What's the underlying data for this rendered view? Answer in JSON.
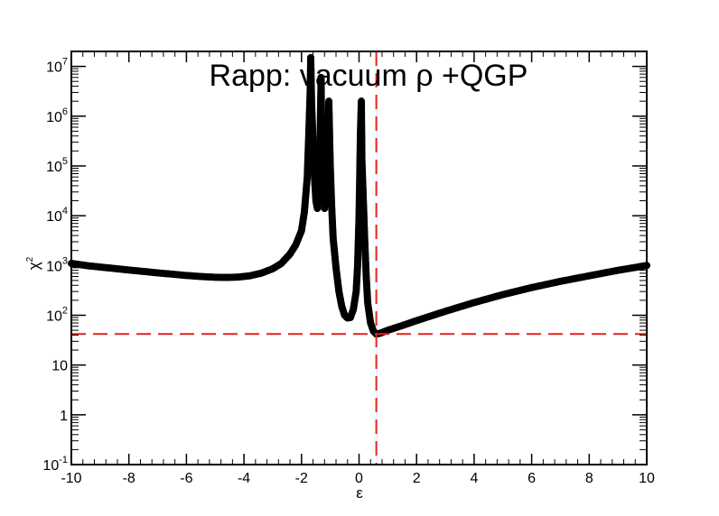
{
  "chart_data": {
    "type": "scatter",
    "title": "Rapp: vacuum ρ +QGP",
    "xlabel": "ε",
    "ylabel": "χ",
    "ylabel_sup": "2",
    "log_y": true,
    "xlim": [
      -10,
      10
    ],
    "ylim": [
      0.1,
      20000000
    ],
    "x_ticks": [
      -10,
      -8,
      -6,
      -4,
      -2,
      0,
      2,
      4,
      6,
      8,
      10
    ],
    "x_tick_labels": [
      "-10",
      "-8",
      "-6",
      "-4",
      "-2",
      "0",
      "2",
      "4",
      "6",
      "8",
      "10"
    ],
    "y_ticks": [
      {
        "value": 0.1,
        "base": "10",
        "exp": "-1"
      },
      {
        "value": 1,
        "base": "1",
        "exp": ""
      },
      {
        "value": 10,
        "base": "10",
        "exp": ""
      },
      {
        "value": 100,
        "base": "10",
        "exp": "2"
      },
      {
        "value": 1000,
        "base": "10",
        "exp": "3"
      },
      {
        "value": 10000,
        "base": "10",
        "exp": "4"
      },
      {
        "value": 100000,
        "base": "10",
        "exp": "5"
      },
      {
        "value": 1000000,
        "base": "10",
        "exp": "6"
      },
      {
        "value": 10000000,
        "base": "10",
        "exp": "7"
      }
    ],
    "reference_lines": {
      "x": 0.6,
      "y": 42,
      "color": "#e3231b"
    },
    "marker_color": "#000000",
    "series": [
      {
        "points": [
          [
            -10,
            1100
          ],
          [
            -9.5,
            1000
          ],
          [
            -9,
            930
          ],
          [
            -8.5,
            870
          ],
          [
            -8,
            810
          ],
          [
            -7.5,
            760
          ],
          [
            -7,
            710
          ],
          [
            -6.5,
            670
          ],
          [
            -6,
            630
          ],
          [
            -5.5,
            600
          ],
          [
            -5,
            580
          ],
          [
            -4.6,
            575
          ],
          [
            -4.2,
            585
          ],
          [
            -3.8,
            620
          ],
          [
            -3.4,
            700
          ],
          [
            -3.0,
            860
          ],
          [
            -2.7,
            1100
          ],
          [
            -2.4,
            1700
          ],
          [
            -2.2,
            2600
          ],
          [
            -2.0,
            5000
          ],
          [
            -1.9,
            12000
          ],
          [
            -1.8,
            60000
          ],
          [
            -1.75,
            400000
          ],
          [
            -1.7,
            3000000
          ],
          [
            -1.68,
            15000000
          ],
          [
            -1.65,
            2000000
          ],
          [
            -1.6,
            300000
          ],
          [
            -1.55,
            60000
          ],
          [
            -1.5,
            20000
          ],
          [
            -1.45,
            14000
          ],
          [
            -1.4,
            50000
          ],
          [
            -1.35,
            500000
          ],
          [
            -1.32,
            6000000
          ],
          [
            -1.3,
            600000
          ],
          [
            -1.25,
            40000
          ],
          [
            -1.2,
            14000
          ],
          [
            -1.15,
            25000
          ],
          [
            -1.1,
            200000
          ],
          [
            -1.05,
            2000000
          ],
          [
            -1.0,
            100000
          ],
          [
            -0.95,
            15000
          ],
          [
            -0.9,
            3500
          ],
          [
            -0.8,
            900
          ],
          [
            -0.7,
            300
          ],
          [
            -0.6,
            150
          ],
          [
            -0.5,
            100
          ],
          [
            -0.4,
            88
          ],
          [
            -0.3,
            90
          ],
          [
            -0.2,
            130
          ],
          [
            -0.1,
            300
          ],
          [
            -0.05,
            1000
          ],
          [
            0.0,
            10000
          ],
          [
            0.05,
            500000
          ],
          [
            0.08,
            2000000
          ],
          [
            0.1,
            130000
          ],
          [
            0.15,
            20000
          ],
          [
            0.2,
            3000
          ],
          [
            0.25,
            600
          ],
          [
            0.3,
            180
          ],
          [
            0.4,
            70
          ],
          [
            0.5,
            48
          ],
          [
            0.6,
            42
          ],
          [
            0.7,
            43
          ],
          [
            0.8,
            45
          ],
          [
            1.0,
            50
          ],
          [
            1.5,
            62
          ],
          [
            2,
            78
          ],
          [
            3,
            120
          ],
          [
            4,
            180
          ],
          [
            5,
            260
          ],
          [
            6,
            360
          ],
          [
            7,
            480
          ],
          [
            8,
            620
          ],
          [
            9,
            800
          ],
          [
            10,
            1000
          ]
        ]
      }
    ]
  }
}
